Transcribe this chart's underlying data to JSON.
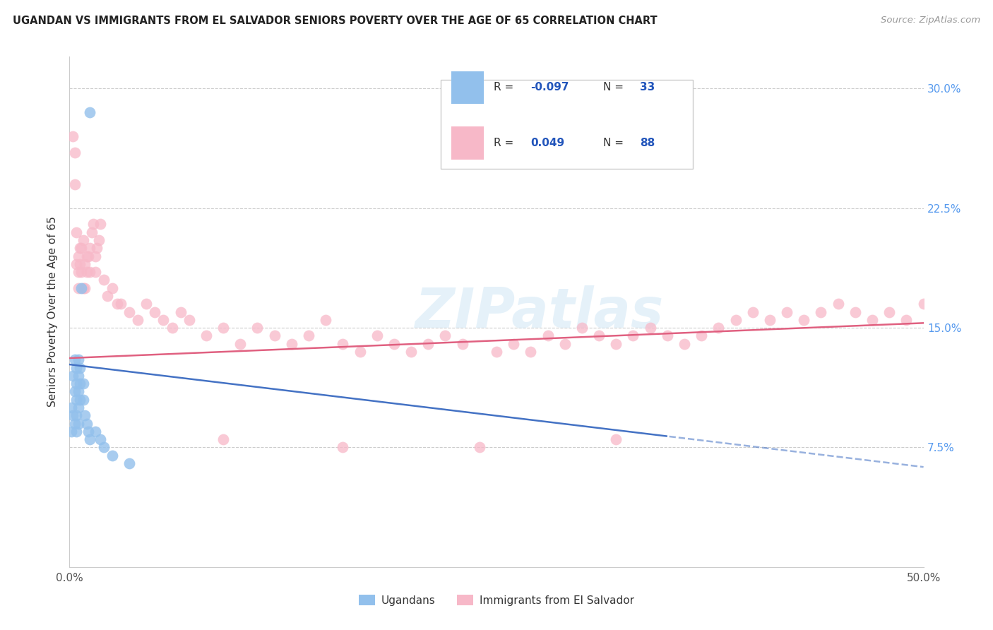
{
  "title": "UGANDAN VS IMMIGRANTS FROM EL SALVADOR SENIORS POVERTY OVER THE AGE OF 65 CORRELATION CHART",
  "source": "Source: ZipAtlas.com",
  "ylabel": "Seniors Poverty Over the Age of 65",
  "xlim": [
    0.0,
    0.5
  ],
  "ylim": [
    0.0,
    0.32
  ],
  "ytick_pos": [
    0.0,
    0.075,
    0.15,
    0.225,
    0.3
  ],
  "ytick_labels": [
    "",
    "7.5%",
    "15.0%",
    "22.5%",
    "30.0%"
  ],
  "xtick_pos": [
    0.0,
    0.1,
    0.2,
    0.3,
    0.4,
    0.5
  ],
  "xtick_labels": [
    "0.0%",
    "",
    "",
    "",
    "",
    "50.0%"
  ],
  "legend_R_blue": "-0.097",
  "legend_N_blue": "33",
  "legend_R_pink": "0.049",
  "legend_N_pink": "88",
  "color_blue": "#92C0EC",
  "color_pink": "#F7B8C8",
  "line_color_blue": "#4472C4",
  "line_color_pink": "#E06080",
  "watermark": "ZIPatlas",
  "ugandan_x": [
    0.001,
    0.001,
    0.002,
    0.002,
    0.003,
    0.003,
    0.003,
    0.004,
    0.004,
    0.004,
    0.004,
    0.004,
    0.005,
    0.005,
    0.005,
    0.005,
    0.005,
    0.006,
    0.006,
    0.006,
    0.007,
    0.008,
    0.008,
    0.009,
    0.01,
    0.011,
    0.012,
    0.015,
    0.018,
    0.02,
    0.025,
    0.035,
    0.012
  ],
  "ugandan_y": [
    0.1,
    0.085,
    0.12,
    0.095,
    0.13,
    0.11,
    0.09,
    0.125,
    0.115,
    0.105,
    0.095,
    0.085,
    0.13,
    0.12,
    0.11,
    0.1,
    0.09,
    0.125,
    0.115,
    0.105,
    0.175,
    0.115,
    0.105,
    0.095,
    0.09,
    0.085,
    0.08,
    0.085,
    0.08,
    0.075,
    0.07,
    0.065,
    0.285
  ],
  "salvador_x": [
    0.002,
    0.003,
    0.003,
    0.004,
    0.004,
    0.005,
    0.005,
    0.005,
    0.006,
    0.006,
    0.007,
    0.007,
    0.008,
    0.008,
    0.009,
    0.009,
    0.01,
    0.01,
    0.011,
    0.012,
    0.012,
    0.013,
    0.014,
    0.015,
    0.015,
    0.016,
    0.017,
    0.018,
    0.02,
    0.022,
    0.025,
    0.028,
    0.03,
    0.035,
    0.04,
    0.045,
    0.05,
    0.055,
    0.06,
    0.065,
    0.07,
    0.08,
    0.09,
    0.1,
    0.11,
    0.12,
    0.13,
    0.14,
    0.15,
    0.16,
    0.17,
    0.18,
    0.19,
    0.2,
    0.21,
    0.22,
    0.23,
    0.25,
    0.26,
    0.27,
    0.28,
    0.29,
    0.3,
    0.31,
    0.32,
    0.33,
    0.34,
    0.35,
    0.36,
    0.37,
    0.38,
    0.39,
    0.4,
    0.41,
    0.42,
    0.43,
    0.44,
    0.45,
    0.46,
    0.47,
    0.48,
    0.49,
    0.5,
    0.505,
    0.32,
    0.24,
    0.16,
    0.09
  ],
  "salvador_y": [
    0.27,
    0.26,
    0.24,
    0.21,
    0.19,
    0.195,
    0.185,
    0.175,
    0.2,
    0.19,
    0.2,
    0.185,
    0.205,
    0.175,
    0.19,
    0.175,
    0.195,
    0.185,
    0.195,
    0.2,
    0.185,
    0.21,
    0.215,
    0.195,
    0.185,
    0.2,
    0.205,
    0.215,
    0.18,
    0.17,
    0.175,
    0.165,
    0.165,
    0.16,
    0.155,
    0.165,
    0.16,
    0.155,
    0.15,
    0.16,
    0.155,
    0.145,
    0.15,
    0.14,
    0.15,
    0.145,
    0.14,
    0.145,
    0.155,
    0.14,
    0.135,
    0.145,
    0.14,
    0.135,
    0.14,
    0.145,
    0.14,
    0.135,
    0.14,
    0.135,
    0.145,
    0.14,
    0.15,
    0.145,
    0.14,
    0.145,
    0.15,
    0.145,
    0.14,
    0.145,
    0.15,
    0.155,
    0.16,
    0.155,
    0.16,
    0.155,
    0.16,
    0.165,
    0.16,
    0.155,
    0.16,
    0.155,
    0.165,
    0.16,
    0.08,
    0.075,
    0.075,
    0.08
  ]
}
